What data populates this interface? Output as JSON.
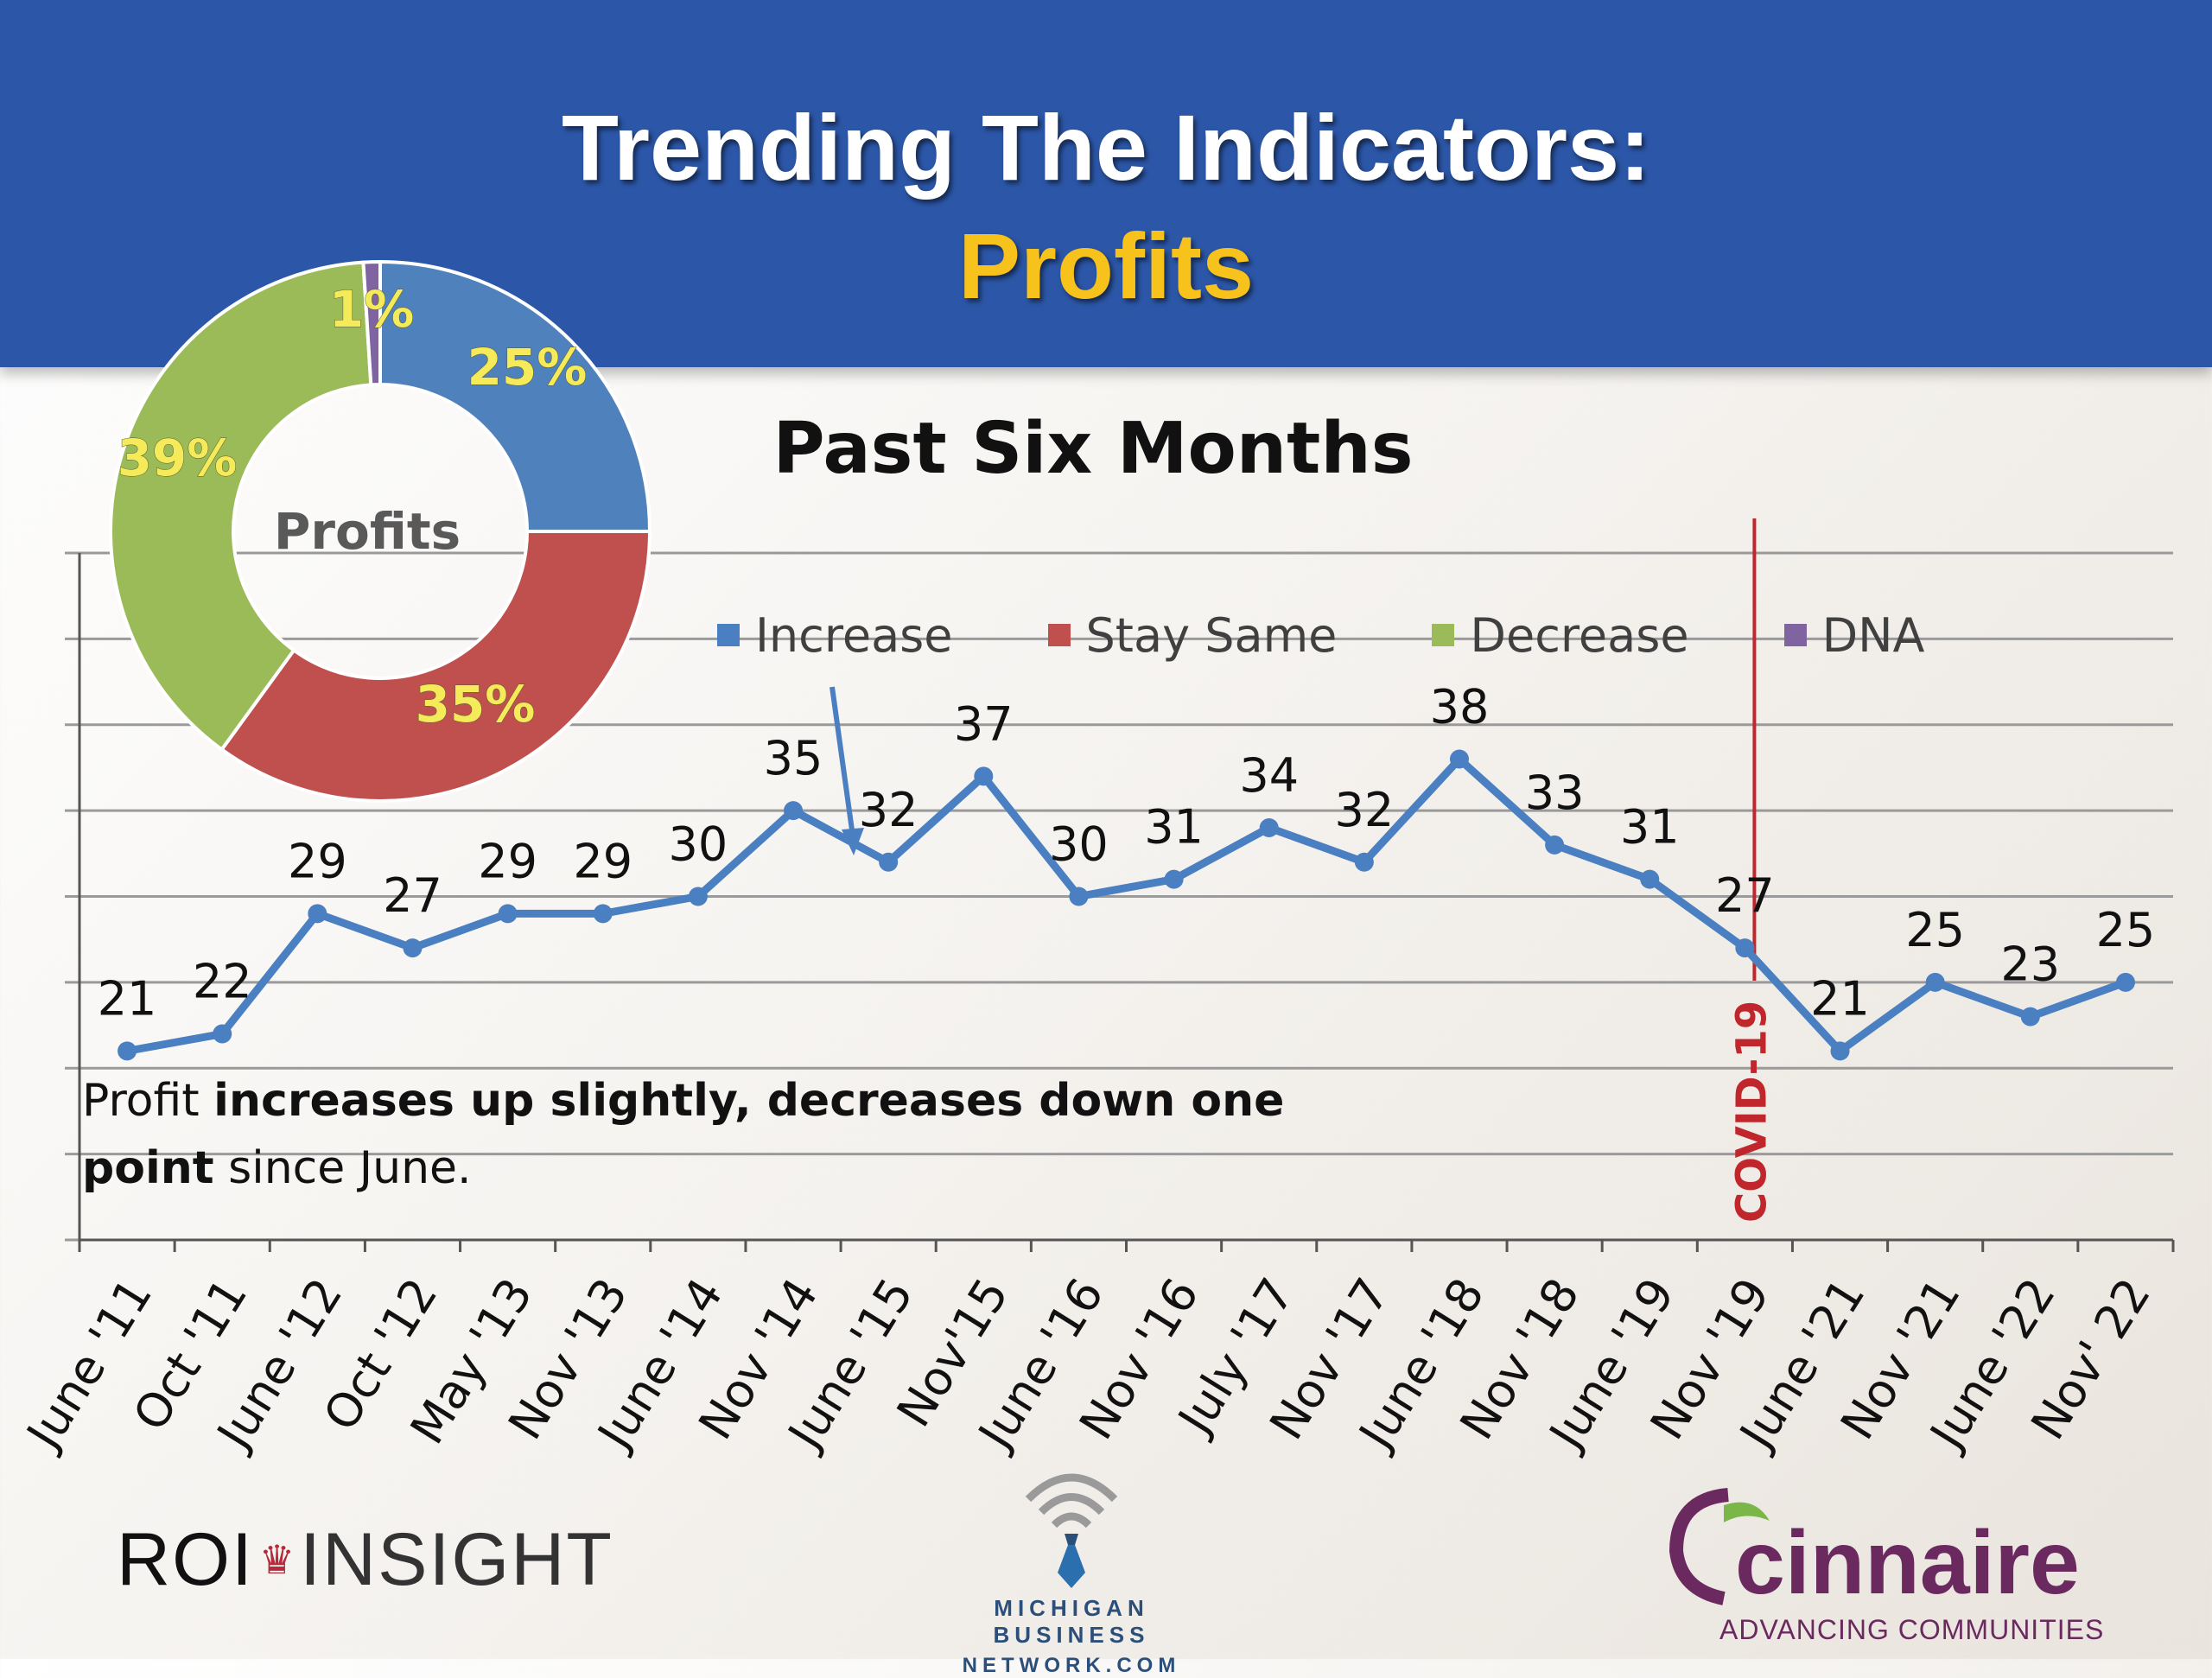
{
  "header": {
    "title_line1": "Trending The Indicators:",
    "title_line2": "Profits",
    "background_color": "#2c57a8",
    "accent_color": "#f7c21c"
  },
  "chart_data": [
    {
      "type": "line",
      "title": "Past Six Months",
      "categories": [
        "June '11",
        "Oct '11",
        "June '12",
        "Oct '12",
        "May '13",
        "Nov '13",
        "June '14",
        "Nov '14",
        "June '15",
        "Nov'15",
        "June '16",
        "Nov '16",
        "July '17",
        "Nov '17",
        "June '18",
        "Nov '18",
        "June '19",
        "Nov '19",
        "June '21",
        "Nov '21",
        "June '22",
        "Nov' 22"
      ],
      "series": [
        {
          "name": "Increase",
          "color": "#4a7fc1",
          "values": [
            21,
            22,
            29,
            27,
            29,
            29,
            30,
            35,
            32,
            37,
            30,
            31,
            34,
            32,
            38,
            33,
            31,
            27,
            21,
            25,
            23,
            25
          ]
        }
      ],
      "ylim": [
        10,
        50
      ],
      "grid": true,
      "annotation": {
        "label": "COVID-19",
        "between": [
          "Nov '19",
          "June '21"
        ],
        "color": "#c0272d"
      },
      "legend": {
        "placement": "top",
        "entries": [
          {
            "name": "Increase",
            "color": "#4a7fc1"
          },
          {
            "name": "Stay Same",
            "color": "#c0504d"
          },
          {
            "name": "Decrease",
            "color": "#9bbb59"
          },
          {
            "name": "DNA",
            "color": "#8064a2"
          }
        ]
      }
    },
    {
      "type": "pie",
      "title": "Profits",
      "hole": true,
      "slices": [
        {
          "name": "Increase",
          "value": 25,
          "label": "25%",
          "color": "#4f81bd"
        },
        {
          "name": "Stay Same",
          "value": 35,
          "label": "35%",
          "color": "#c0504d"
        },
        {
          "name": "Decrease",
          "value": 39,
          "label": "39%",
          "color": "#9bbb59"
        },
        {
          "name": "DNA",
          "value": 1,
          "label": "1%",
          "color": "#8064a2"
        }
      ]
    }
  ],
  "caption": {
    "part1": "Profit ",
    "part2": "increases up slightly, decreases down one point",
    "part3": " since June."
  },
  "logos": {
    "roi": "ROI",
    "insight": "INSIGHT",
    "mbn_line1": "MICHIGAN BUSINESS",
    "mbn_line2": "NETWORK.COM",
    "cinnaire": "cinnaire",
    "cinnaire_tagline": "ADVANCING COMMUNITIES"
  }
}
